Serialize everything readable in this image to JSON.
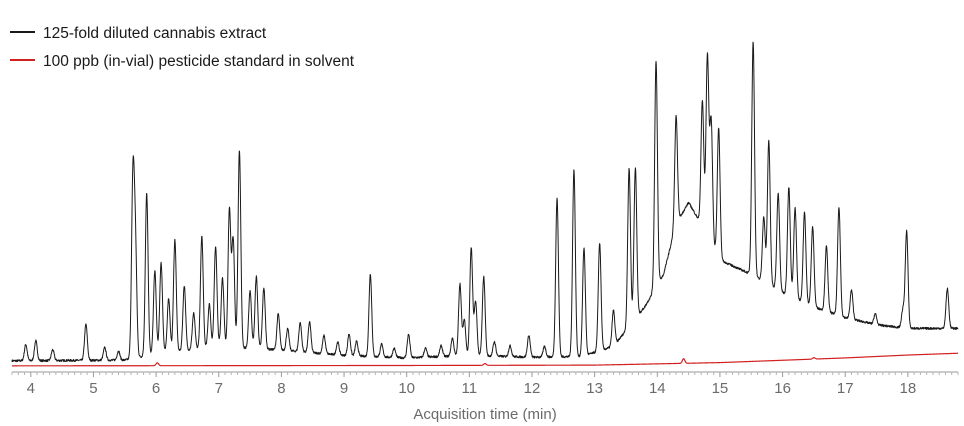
{
  "chart_data": {
    "type": "line",
    "xlabel": "Acquisition time (min)",
    "ylabel": "",
    "xlim": [
      3.7,
      18.8
    ],
    "ylim": [
      0,
      100
    ],
    "x_ticks": [
      "4",
      "5",
      "6",
      "7",
      "8",
      "9",
      "10",
      "11",
      "12",
      "13",
      "14",
      "15",
      "16",
      "17",
      "18"
    ],
    "grid": false,
    "legend_position": "top-left",
    "series": [
      {
        "name": "125-fold diluted cannabis extract",
        "color": "#1a1a1a",
        "baseline": [
          [
            3.7,
            2.0
          ],
          [
            5.5,
            2.2
          ],
          [
            6.0,
            4.0
          ],
          [
            7.0,
            6.0
          ],
          [
            8.0,
            5.0
          ],
          [
            9.0,
            3.5
          ],
          [
            10.0,
            2.8
          ],
          [
            11.0,
            3.5
          ],
          [
            12.0,
            3.0
          ],
          [
            12.8,
            3.2
          ],
          [
            13.3,
            6.0
          ],
          [
            13.8,
            17.0
          ],
          [
            14.1,
            26.0
          ],
          [
            14.3,
            40.0
          ],
          [
            14.5,
            46.0
          ],
          [
            14.7,
            40.0
          ],
          [
            15.0,
            30.0
          ],
          [
            15.5,
            26.0
          ],
          [
            16.0,
            21.0
          ],
          [
            16.5,
            17.0
          ],
          [
            17.0,
            14.0
          ],
          [
            17.5,
            12.0
          ],
          [
            18.0,
            11.0
          ],
          [
            18.8,
            11.0
          ]
        ],
        "peaks": [
          [
            3.92,
            4.5
          ],
          [
            4.08,
            5.5
          ],
          [
            4.35,
            3.0
          ],
          [
            4.88,
            10.0
          ],
          [
            5.18,
            3.5
          ],
          [
            5.4,
            2.5
          ],
          [
            5.63,
            49.0
          ],
          [
            5.67,
            30.0
          ],
          [
            5.85,
            45.0
          ],
          [
            5.98,
            23.0
          ],
          [
            6.08,
            25.0
          ],
          [
            6.2,
            15.0
          ],
          [
            6.3,
            31.0
          ],
          [
            6.45,
            18.0
          ],
          [
            6.6,
            10.0
          ],
          [
            6.73,
            31.0
          ],
          [
            6.85,
            12.0
          ],
          [
            6.95,
            28.0
          ],
          [
            7.06,
            19.0
          ],
          [
            7.17,
            38.0
          ],
          [
            7.23,
            30.0
          ],
          [
            7.33,
            55.0
          ],
          [
            7.5,
            16.0
          ],
          [
            7.6,
            20.0
          ],
          [
            7.72,
            17.0
          ],
          [
            7.95,
            10.0
          ],
          [
            8.1,
            6.0
          ],
          [
            8.3,
            8.0
          ],
          [
            8.45,
            8.5
          ],
          [
            8.68,
            5.0
          ],
          [
            8.9,
            3.5
          ],
          [
            9.08,
            6.0
          ],
          [
            9.2,
            4.0
          ],
          [
            9.42,
            23.0
          ],
          [
            9.6,
            3.5
          ],
          [
            9.8,
            2.5
          ],
          [
            10.03,
            6.5
          ],
          [
            10.3,
            2.5
          ],
          [
            10.55,
            3.0
          ],
          [
            10.73,
            5.0
          ],
          [
            10.85,
            20.0
          ],
          [
            10.92,
            10.0
          ],
          [
            11.03,
            30.0
          ],
          [
            11.1,
            15.0
          ],
          [
            11.23,
            22.0
          ],
          [
            11.4,
            4.0
          ],
          [
            11.65,
            3.0
          ],
          [
            11.95,
            6.0
          ],
          [
            12.2,
            3.0
          ],
          [
            12.4,
            44.0
          ],
          [
            12.67,
            52.0
          ],
          [
            12.83,
            30.0
          ],
          [
            13.08,
            30.0
          ],
          [
            13.3,
            10.0
          ],
          [
            13.55,
            44.0
          ],
          [
            13.65,
            42.0
          ],
          [
            13.98,
            63.0
          ],
          [
            14.3,
            30.0
          ],
          [
            14.72,
            35.0
          ],
          [
            14.8,
            50.0
          ],
          [
            14.86,
            34.0
          ],
          [
            14.98,
            36.0
          ],
          [
            15.53,
            65.0
          ],
          [
            15.7,
            18.0
          ],
          [
            15.78,
            40.0
          ],
          [
            15.93,
            27.0
          ],
          [
            16.1,
            30.0
          ],
          [
            16.2,
            25.0
          ],
          [
            16.35,
            25.0
          ],
          [
            16.48,
            22.0
          ],
          [
            16.7,
            18.0
          ],
          [
            16.9,
            30.0
          ],
          [
            17.1,
            8.0
          ],
          [
            17.48,
            3.0
          ],
          [
            17.92,
            5.0
          ],
          [
            17.98,
            27.0
          ],
          [
            18.63,
            11.0
          ]
        ]
      },
      {
        "name": "100 ppb (in-vial) pesticide standard in solvent",
        "color": "#d21f1f",
        "baseline": [
          [
            3.7,
            0.6
          ],
          [
            10.0,
            0.7
          ],
          [
            13.0,
            0.8
          ],
          [
            15.0,
            1.5
          ],
          [
            17.0,
            2.8
          ],
          [
            18.0,
            3.6
          ],
          [
            18.8,
            4.1
          ]
        ],
        "peaks": [
          [
            6.02,
            0.8
          ],
          [
            11.25,
            0.5
          ],
          [
            14.42,
            1.3
          ],
          [
            16.5,
            0.4
          ]
        ]
      }
    ]
  }
}
